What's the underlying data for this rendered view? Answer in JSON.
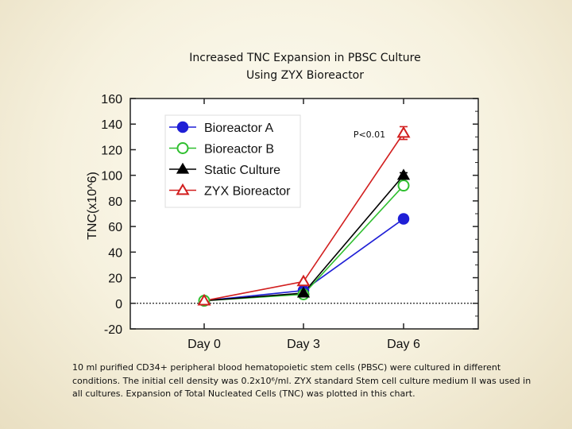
{
  "header": {
    "title_line1": "Increased TNC Expansion in PBSC Culture",
    "title_line2": "Using ZYX Bioreactor"
  },
  "chart_data": {
    "type": "line",
    "categories": [
      "Day 0",
      "Day 3",
      "Day 6"
    ],
    "ylabel": "TNC(x10^6)",
    "xlabel": "",
    "ylim": [
      -20,
      160
    ],
    "yticks": [
      -20,
      0,
      20,
      40,
      60,
      80,
      100,
      120,
      140,
      160
    ],
    "annotation": "P<0.01",
    "reference_line": 0,
    "legend_position": "top-left",
    "series": [
      {
        "name": "Bioreactor A",
        "values": [
          2,
          10,
          66
        ],
        "errors": [
          0,
          0,
          3
        ],
        "marker": "circle-filled",
        "color": "#1f1fd6"
      },
      {
        "name": "Bioreactor B",
        "values": [
          2,
          7,
          92
        ],
        "errors": [
          0,
          0,
          3
        ],
        "marker": "circle-open",
        "color": "#2fbf2f"
      },
      {
        "name": "Static Culture",
        "values": [
          2,
          8,
          100
        ],
        "errors": [
          0,
          0,
          2
        ],
        "marker": "triangle-filled",
        "color": "#000000"
      },
      {
        "name": "ZYX Bioreactor",
        "values": [
          2,
          17,
          133
        ],
        "errors": [
          0,
          0,
          5
        ],
        "marker": "triangle-open",
        "color": "#d21f1f"
      }
    ]
  },
  "caption": {
    "line1": "10 ml purified CD34+ peripheral blood hematopoietic stem cells (PBSC) were cultured in different",
    "line2": "conditions. The initial cell density was 0.2x10⁶/ml. ZYX standard Stem cell culture medium II was used in",
    "line3": "all cultures. Expansion of Total Nucleated Cells (TNC) was plotted in this chart."
  }
}
